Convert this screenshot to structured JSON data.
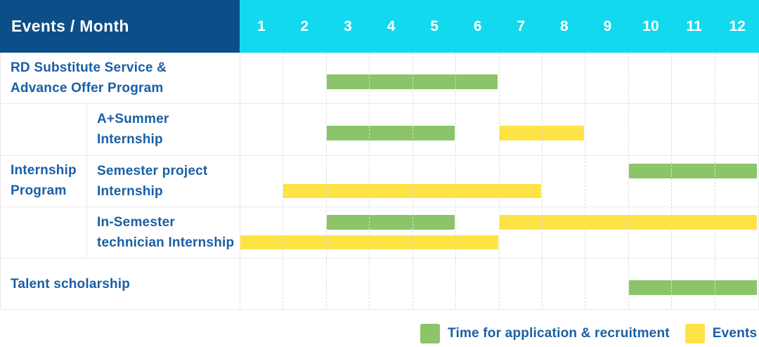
{
  "header": {
    "label": "Events / Month",
    "months": [
      "1",
      "2",
      "3",
      "4",
      "5",
      "6",
      "7",
      "8",
      "9",
      "10",
      "11",
      "12"
    ]
  },
  "table": {
    "group_label": "Internship\nProgram",
    "row_labels": [
      "RD Substitute Service &\nAdvance Offer Program",
      "A+Summer\nInternship",
      "Semester project\nInternship",
      "In-Semester\ntechnician Internship",
      "Talent scholarship"
    ]
  },
  "colors": {
    "header_bg": "#0c4e88",
    "months_bg": "#12d9ee",
    "header_text": "#ffffff",
    "label_text": "#1a5fa4",
    "application": "#8bc469",
    "events": "#fee345",
    "grid": "#e9e9e9"
  },
  "legend": [
    {
      "key": "application",
      "label": "Time for application & recruitment"
    },
    {
      "key": "events",
      "label": "Events"
    }
  ],
  "chart_data": {
    "type": "bar",
    "subtype": "gantt-schedule",
    "title": "Events / Month",
    "x_axis_label": "Month",
    "x_range": [
      1,
      12
    ],
    "x_ticks": [
      "1",
      "2",
      "3",
      "4",
      "5",
      "6",
      "7",
      "8",
      "9",
      "10",
      "11",
      "12"
    ],
    "legend_entries": [
      {
        "label": "Time for application & recruitment",
        "color": "#8bc469"
      },
      {
        "label": "Events",
        "color": "#fee345"
      }
    ],
    "rows": [
      {
        "group": "",
        "label": "RD Substitute Service & Advance Offer Program",
        "lanes": 1,
        "bars": [
          {
            "type": "application",
            "start_month": 3,
            "end_month": 6,
            "lane": 0
          }
        ]
      },
      {
        "group": "Internship Program",
        "label": "A+Summer Internship",
        "lanes": 1,
        "bars": [
          {
            "type": "application",
            "start_month": 3,
            "end_month": 5,
            "lane": 0
          },
          {
            "type": "events",
            "start_month": 7,
            "end_month": 8,
            "lane": 0
          }
        ]
      },
      {
        "group": "Internship Program",
        "label": "Semester project Internship",
        "lanes": 2,
        "bars": [
          {
            "type": "application",
            "start_month": 10,
            "end_month": 12,
            "lane": 0
          },
          {
            "type": "events",
            "start_month": 2,
            "end_month": 7,
            "lane": 1
          }
        ]
      },
      {
        "group": "Internship Program",
        "label": "In-Semester technician Internship",
        "lanes": 2,
        "bars": [
          {
            "type": "application",
            "start_month": 3,
            "end_month": 5,
            "lane": 0
          },
          {
            "type": "events",
            "start_month": 7,
            "end_month": 12,
            "lane": 0
          },
          {
            "type": "events",
            "start_month": 1,
            "end_month": 6,
            "lane": 1
          }
        ]
      },
      {
        "group": "",
        "label": "Talent scholarship",
        "lanes": 1,
        "bars": [
          {
            "type": "application",
            "start_month": 10,
            "end_month": 12,
            "lane": 0
          }
        ]
      }
    ]
  }
}
